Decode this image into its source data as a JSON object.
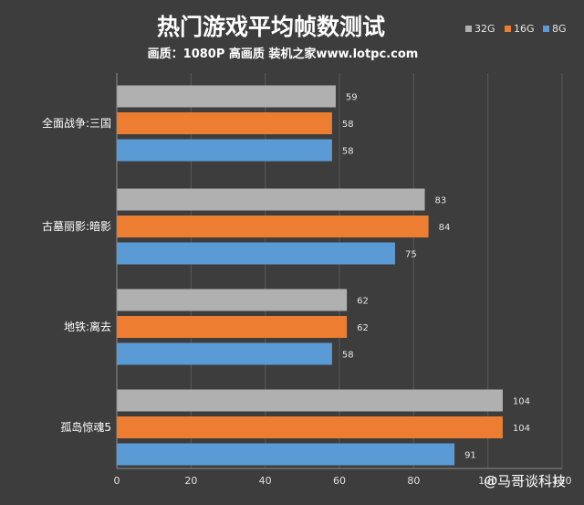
{
  "chart_data": {
    "type": "bar",
    "orientation": "horizontal",
    "title": "热门游戏平均帧数测试",
    "subtitle": "画质：1080P 高画质 装机之家www.lotpc.com",
    "categories": [
      "全面战争:三国",
      "古墓丽影:暗影",
      "地铁:离去",
      "孤岛惊魂5"
    ],
    "series": [
      {
        "name": "32G",
        "color": "#b0b0b0",
        "values": [
          59,
          83,
          62,
          104
        ]
      },
      {
        "name": "16G",
        "color": "#ed7d31",
        "values": [
          58,
          84,
          62,
          104
        ]
      },
      {
        "name": "8G",
        "color": "#5b9bd5",
        "values": [
          58,
          75,
          58,
          91
        ]
      }
    ],
    "xlim": [
      0,
      120
    ],
    "xticks": [
      0,
      20,
      40,
      60,
      80,
      100,
      120
    ],
    "grid": true,
    "legend_position": "top-right"
  },
  "watermark": "@马哥谈科技",
  "colors": {
    "background": "#3d3d3d",
    "gridline": "#595959",
    "axis": "#8c8c8c"
  }
}
